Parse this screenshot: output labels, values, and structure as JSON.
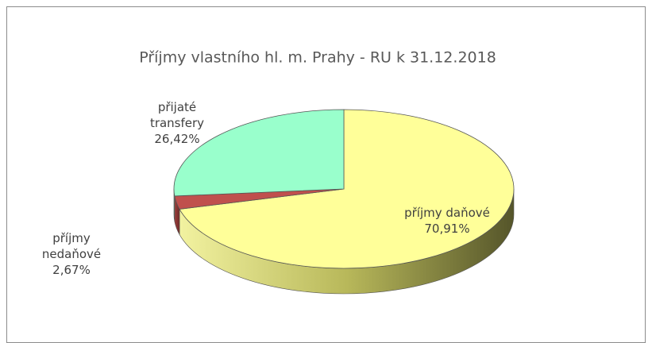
{
  "chart_data": {
    "type": "pie3d",
    "title": "Příjmy vlastního hl. m. Prahy - RU k 31.12.2018",
    "categories": [
      "příjmy daňové",
      "příjmy nedaňové",
      "přijaté transfery"
    ],
    "values": [
      70.91,
      2.67,
      26.42
    ],
    "value_labels": [
      "70,91%",
      "2,67%",
      "26,42%"
    ],
    "colors": [
      "#ffff99",
      "#c0504d",
      "#99ffcc"
    ]
  }
}
